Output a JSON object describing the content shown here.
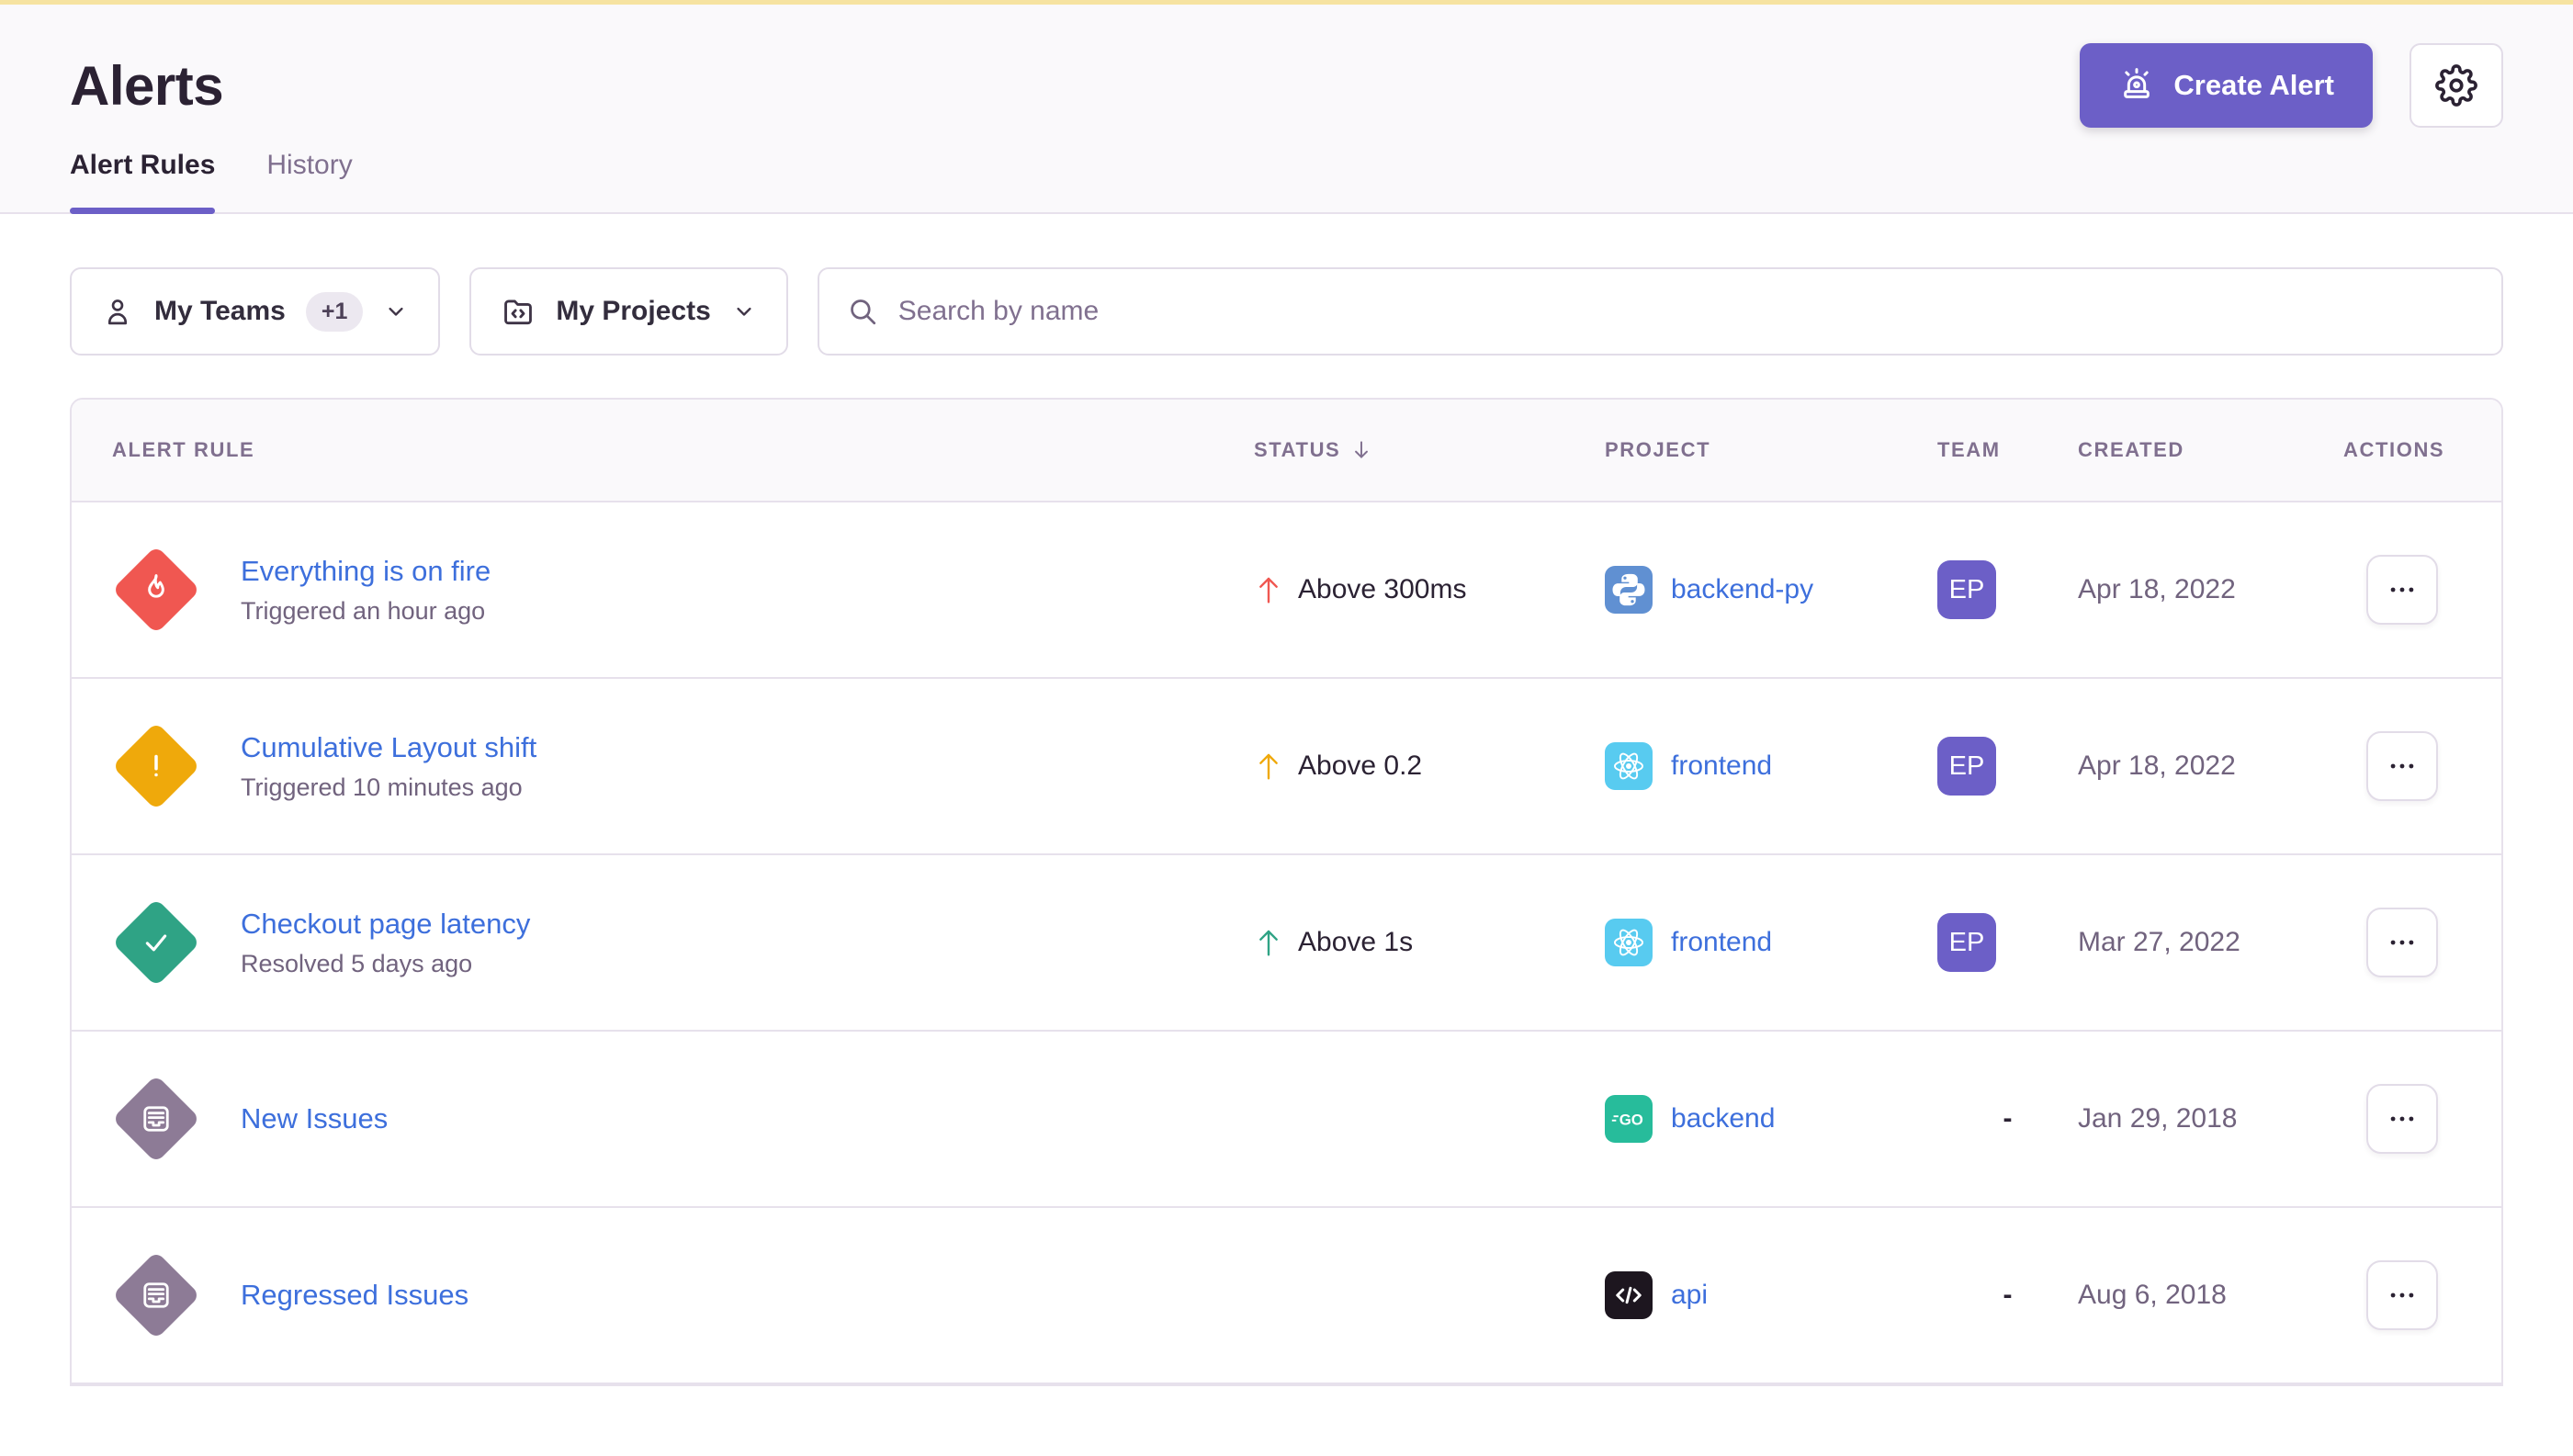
{
  "colors": {
    "accent": "#6C5FC7",
    "link": "#3D6FDC",
    "critical": "#F05751",
    "warning": "#EFA90B",
    "resolved": "#2FA385",
    "issues": "#8D7B96",
    "python": "#6090D2",
    "react": "#58CBF0",
    "go": "#27BC9B",
    "api": "#1D161F",
    "topbar": "#F6E3A1"
  },
  "header": {
    "title": "Alerts",
    "create_alert_label": "Create Alert",
    "tabs": [
      {
        "label": "Alert Rules",
        "active": true
      },
      {
        "label": "History",
        "active": false
      }
    ]
  },
  "filters": {
    "teams_label": "My Teams",
    "teams_badge": "+1",
    "projects_label": "My Projects",
    "search_placeholder": "Search by name"
  },
  "table": {
    "columns": [
      "Alert Rule",
      "Status",
      "Project",
      "Team",
      "Created",
      "Actions"
    ],
    "sorted_by": "Status",
    "sort_direction": "desc",
    "rows": [
      {
        "name": "Everything is on fire",
        "subtext": "Triggered an hour ago",
        "state": "critical",
        "status": "Above 300ms",
        "project": {
          "name": "backend-py",
          "platform": "python"
        },
        "team": "EP",
        "created": "Apr 18, 2022"
      },
      {
        "name": "Cumulative Layout shift",
        "subtext": "Triggered 10 minutes ago",
        "state": "warning",
        "status": "Above 0.2",
        "project": {
          "name": "frontend",
          "platform": "react"
        },
        "team": "EP",
        "created": "Apr 18, 2022"
      },
      {
        "name": "Checkout page latency",
        "subtext": "Resolved 5 days ago",
        "state": "resolved",
        "status": "Above 1s",
        "project": {
          "name": "frontend",
          "platform": "react"
        },
        "team": "EP",
        "created": "Mar 27, 2022"
      },
      {
        "name": "New Issues",
        "subtext": "",
        "state": "issues",
        "status": "",
        "project": {
          "name": "backend",
          "platform": "go"
        },
        "team": "-",
        "created": "Jan 29, 2018"
      },
      {
        "name": "Regressed Issues",
        "subtext": "",
        "state": "issues",
        "status": "",
        "project": {
          "name": "api",
          "platform": "api"
        },
        "team": "-",
        "created": "Aug 6, 2018"
      }
    ]
  }
}
